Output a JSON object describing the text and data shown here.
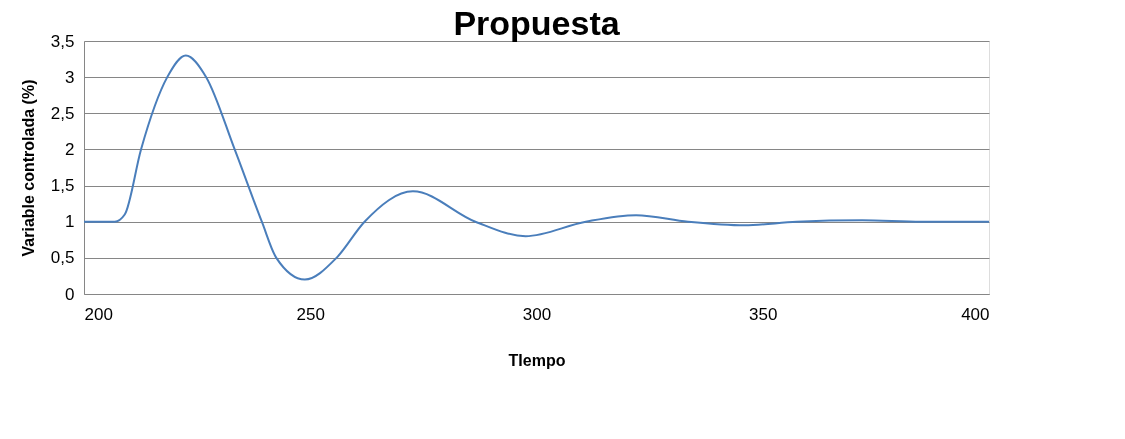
{
  "chart_data": {
    "type": "line",
    "title": "Propuesta",
    "xlabel": "TIempo",
    "ylabel": "Variable controlada (%)",
    "series": [
      {
        "color": "#4a7ebb",
        "x": [
          200,
          206.8,
          209,
          212.6,
          218.4,
          222.5,
          227,
          233.3,
          239.3,
          242.5,
          248.8,
          255.8,
          262,
          272.7,
          286.5,
          297.6,
          310.9,
          322,
          333.5,
          346,
          357.5,
          372,
          385,
          400
        ],
        "values": [
          1,
          1,
          1.1,
          2,
          3,
          3.3,
          3,
          2,
          1,
          0.5,
          0.2,
          0.5,
          1,
          1.42,
          1,
          0.8,
          1,
          1.09,
          1,
          0.95,
          1,
          1.02,
          1,
          1
        ]
      }
    ],
    "xlim": [
      200,
      400
    ],
    "xticks": [
      200,
      250,
      300,
      350,
      400
    ],
    "ylim": [
      0,
      3.5
    ],
    "yticks": [
      0,
      {
        "value": 0.5,
        "label": "0,5"
      },
      1,
      {
        "value": 1.5,
        "label": "1,5"
      },
      2,
      {
        "value": 2.5,
        "label": "2,5"
      },
      3,
      {
        "value": 3.5,
        "label": "3,5"
      }
    ],
    "grid": "y",
    "marker": "none",
    "line_style": "solid"
  }
}
